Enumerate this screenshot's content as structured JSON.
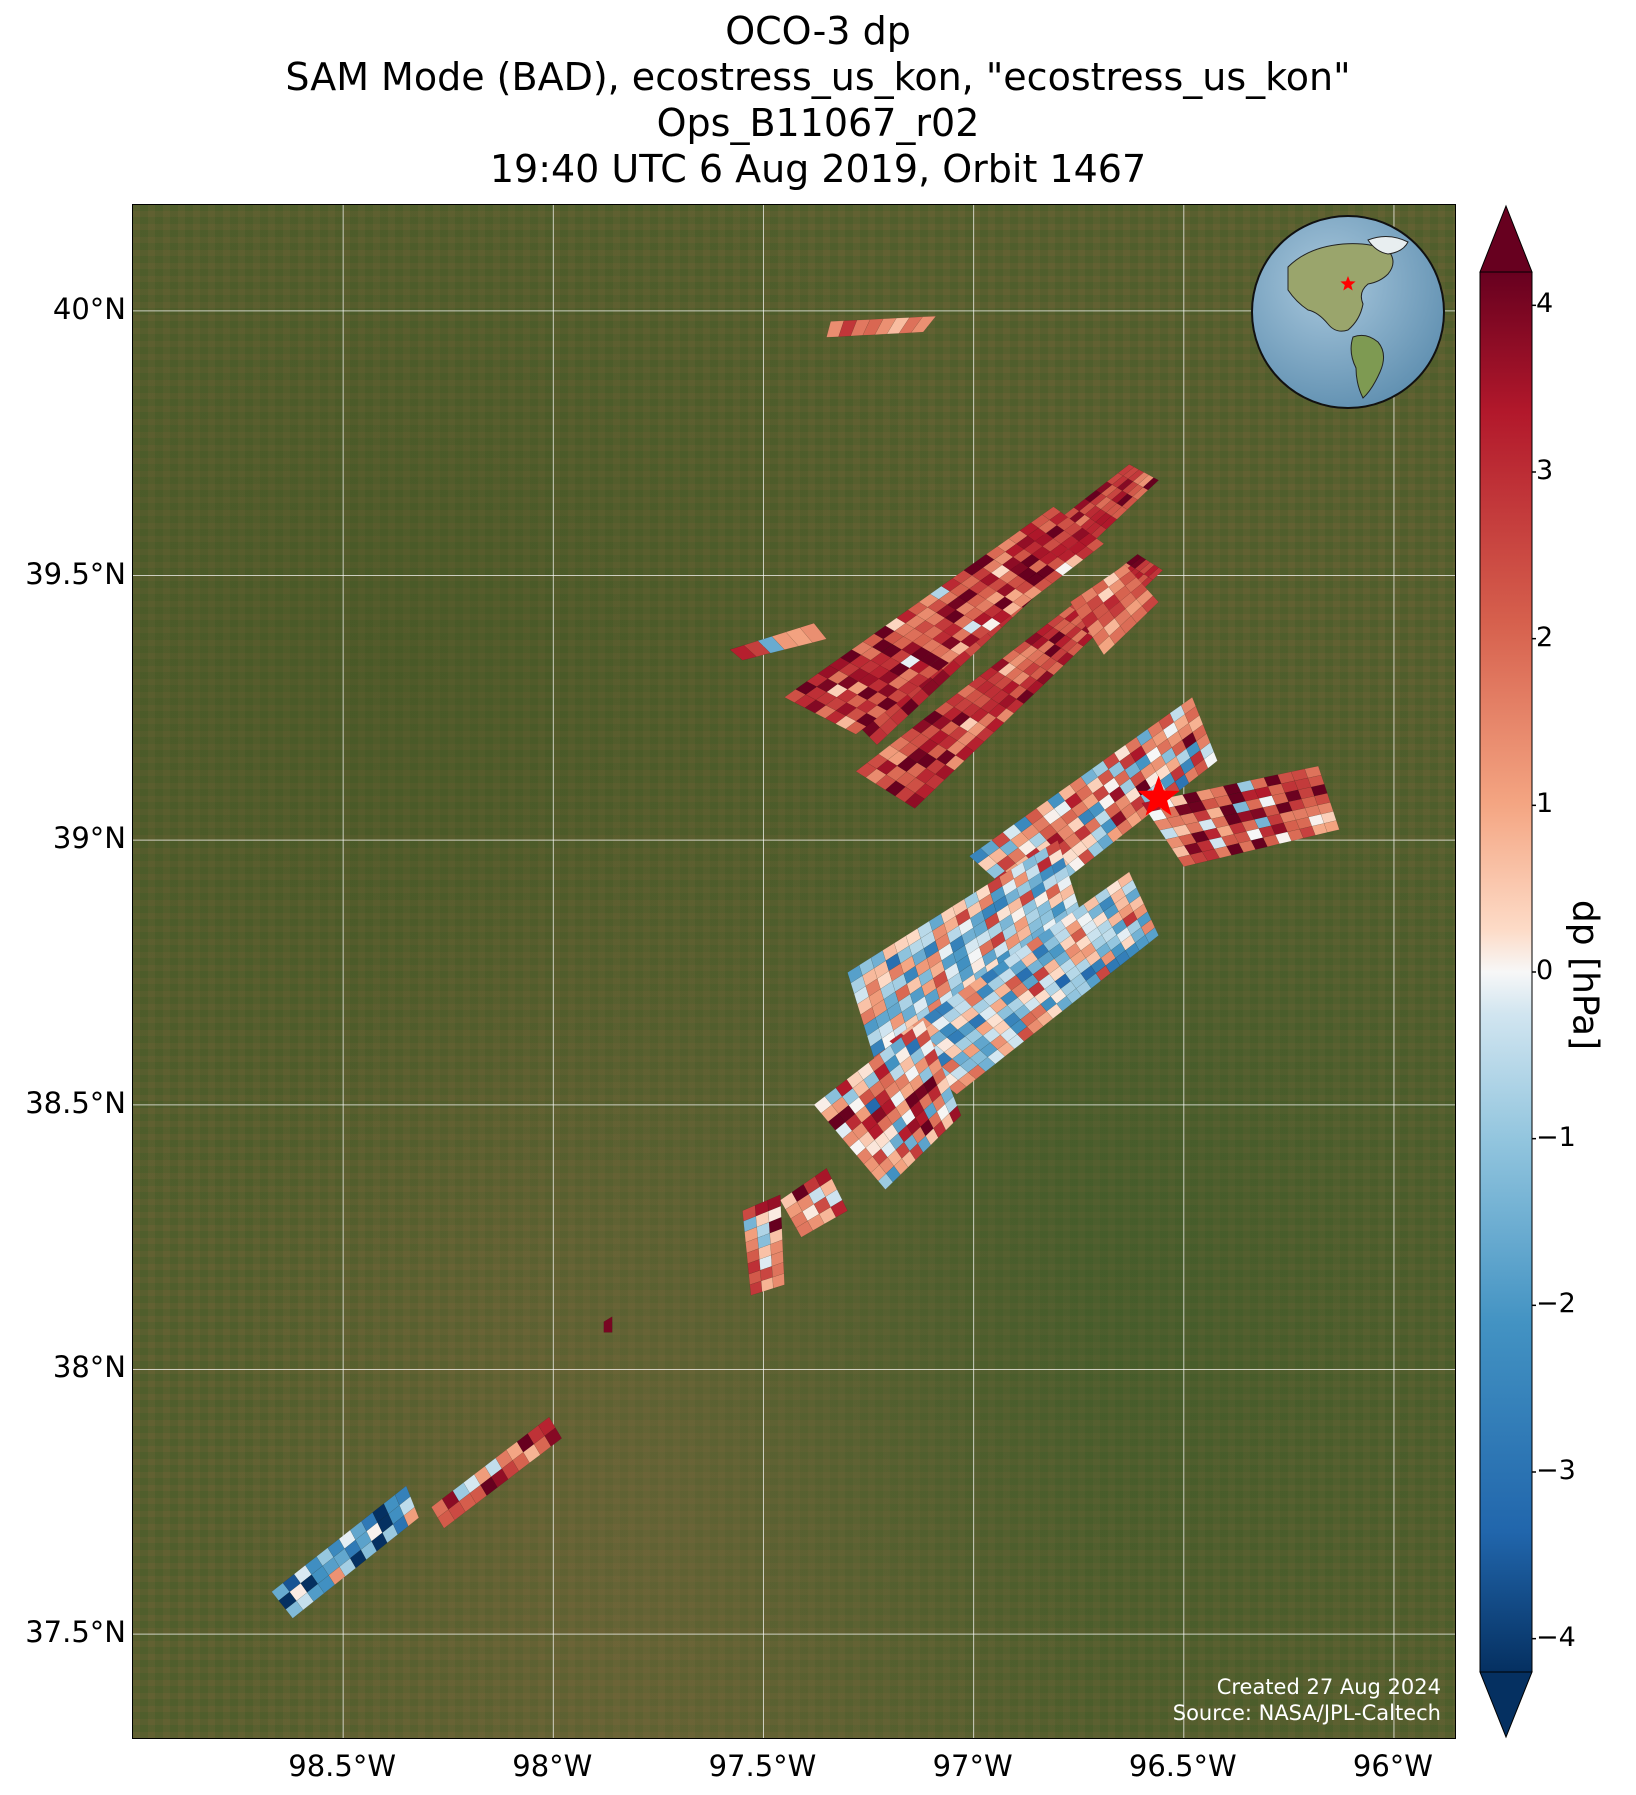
{
  "title": {
    "line1": "OCO-3 dp",
    "line2": "SAM Mode (BAD), ecostress_us_kon, \"ecostress_us_kon\"",
    "line3": "Ops_B11067_r02",
    "line4": "19:40 UTC 6 Aug 2019, Orbit 1467"
  },
  "map": {
    "lon_range": [
      -99.0,
      -95.85
    ],
    "lat_range": [
      37.3,
      40.2
    ],
    "latitude_labels": [
      "40°N",
      "39.5°N",
      "39°N",
      "38.5°N",
      "38°N",
      "37.5°N"
    ],
    "latitude_values": [
      40.0,
      39.5,
      39.0,
      38.5,
      38.0,
      37.5
    ],
    "longitude_labels": [
      "98.5°W",
      "98°W",
      "97.5°W",
      "97°W",
      "96.5°W",
      "96°W"
    ],
    "longitude_values": [
      -98.5,
      -98.0,
      -97.5,
      -97.0,
      -96.5,
      -96.0
    ],
    "grid": true,
    "basemap": "satellite imagery",
    "site_marker": {
      "symbol": "red-star",
      "lon": -96.56,
      "lat": 39.08
    },
    "inset_globe": {
      "position": "top-right",
      "marker": "red-star"
    }
  },
  "credit": {
    "created": "Created 27 Aug 2024",
    "source": "Source: NASA/JPL-Caltech"
  },
  "colorbar": {
    "label": "dp [hPa]",
    "colormap": "RdBu_r",
    "range": [
      -4.2,
      4.2
    ],
    "extend": "both",
    "ticks": [
      "4",
      "3",
      "2",
      "1",
      "0",
      "−1",
      "−2",
      "−3",
      "−4"
    ],
    "tick_values": [
      4,
      3,
      2,
      1,
      0,
      -1,
      -2,
      -3,
      -4
    ]
  },
  "chart_data": {
    "type": "heatmap",
    "variable": "dp",
    "units": "hPa",
    "swaths": [
      {
        "name": "top-sliver",
        "corners": [
          [
            -97.34,
            39.98
          ],
          [
            -97.09,
            39.99
          ],
          [
            -97.12,
            39.96
          ],
          [
            -97.35,
            39.95
          ]
        ],
        "mean_dp": 1.2,
        "spread": 1.5
      },
      {
        "name": "north-upper",
        "corners": [
          [
            -97.34,
            39.27
          ],
          [
            -96.63,
            39.71
          ],
          [
            -96.56,
            39.68
          ],
          [
            -97.23,
            39.18
          ]
        ],
        "mean_dp": 2.9,
        "spread": 1.3
      },
      {
        "name": "north-middle",
        "corners": [
          [
            -97.45,
            39.27
          ],
          [
            -96.81,
            39.63
          ],
          [
            -96.69,
            39.56
          ],
          [
            -97.28,
            39.2
          ]
        ],
        "mean_dp": 2.7,
        "spread": 1.8
      },
      {
        "name": "north-lower",
        "corners": [
          [
            -97.28,
            39.13
          ],
          [
            -96.61,
            39.54
          ],
          [
            -96.55,
            39.51
          ],
          [
            -97.14,
            39.06
          ]
        ],
        "mean_dp": 2.8,
        "spread": 1.4
      },
      {
        "name": "north-west-finger",
        "corners": [
          [
            -97.58,
            39.36
          ],
          [
            -97.38,
            39.41
          ],
          [
            -97.35,
            39.38
          ],
          [
            -97.55,
            39.34
          ]
        ],
        "mean_dp": 1.8,
        "spread": 2.0
      },
      {
        "name": "north-east-block",
        "corners": [
          [
            -96.77,
            39.45
          ],
          [
            -96.64,
            39.52
          ],
          [
            -96.56,
            39.45
          ],
          [
            -96.69,
            39.35
          ]
        ],
        "mean_dp": 2.0,
        "spread": 1.2
      },
      {
        "name": "south-east-upper",
        "corners": [
          [
            -97.01,
            38.97
          ],
          [
            -96.48,
            39.27
          ],
          [
            -96.42,
            39.15
          ],
          [
            -96.87,
            38.87
          ]
        ],
        "mean_dp": 0.8,
        "spread": 2.4
      },
      {
        "name": "south-east-tail",
        "corners": [
          [
            -96.6,
            39.07
          ],
          [
            -96.18,
            39.14
          ],
          [
            -96.13,
            39.02
          ],
          [
            -96.5,
            38.95
          ]
        ],
        "mean_dp": 2.2,
        "spread": 2.2
      },
      {
        "name": "south-middle",
        "corners": [
          [
            -97.3,
            38.75
          ],
          [
            -96.8,
            39.0
          ],
          [
            -96.74,
            38.85
          ],
          [
            -97.23,
            38.57
          ]
        ],
        "mean_dp": -0.5,
        "spread": 2.2
      },
      {
        "name": "south-lower",
        "corners": [
          [
            -97.2,
            38.62
          ],
          [
            -96.63,
            38.94
          ],
          [
            -96.56,
            38.82
          ],
          [
            -97.04,
            38.52
          ]
        ],
        "mean_dp": -0.3,
        "spread": 2.4
      },
      {
        "name": "south-tail",
        "corners": [
          [
            -97.38,
            38.5
          ],
          [
            -97.12,
            38.66
          ],
          [
            -97.03,
            38.48
          ],
          [
            -97.21,
            38.34
          ]
        ],
        "mean_dp": 1.0,
        "spread": 2.6
      },
      {
        "name": "scatter-mid",
        "corners": [
          [
            -97.46,
            38.32
          ],
          [
            -97.35,
            38.38
          ],
          [
            -97.3,
            38.3
          ],
          [
            -97.41,
            38.25
          ]
        ],
        "mean_dp": 1.5,
        "spread": 3.0
      },
      {
        "name": "scatter-west",
        "corners": [
          [
            -97.55,
            38.3
          ],
          [
            -97.46,
            38.33
          ],
          [
            -97.45,
            38.16
          ],
          [
            -97.53,
            38.14
          ]
        ],
        "mean_dp": 1.0,
        "spread": 3.0
      },
      {
        "name": "southwest-pixel",
        "corners": [
          [
            -97.88,
            38.09
          ],
          [
            -97.86,
            38.1
          ],
          [
            -97.86,
            38.07
          ],
          [
            -97.88,
            38.07
          ]
        ],
        "mean_dp": 4.0,
        "spread": 0.2
      },
      {
        "name": "southwest-upper",
        "corners": [
          [
            -98.29,
            37.74
          ],
          [
            -98.01,
            37.91
          ],
          [
            -97.98,
            37.87
          ],
          [
            -98.26,
            37.7
          ]
        ],
        "mean_dp": 2.5,
        "spread": 2.5
      },
      {
        "name": "southwest-lower",
        "corners": [
          [
            -98.67,
            37.58
          ],
          [
            -98.35,
            37.78
          ],
          [
            -98.32,
            37.72
          ],
          [
            -98.62,
            37.53
          ]
        ],
        "mean_dp": -1.5,
        "spread": 3.0
      }
    ]
  }
}
